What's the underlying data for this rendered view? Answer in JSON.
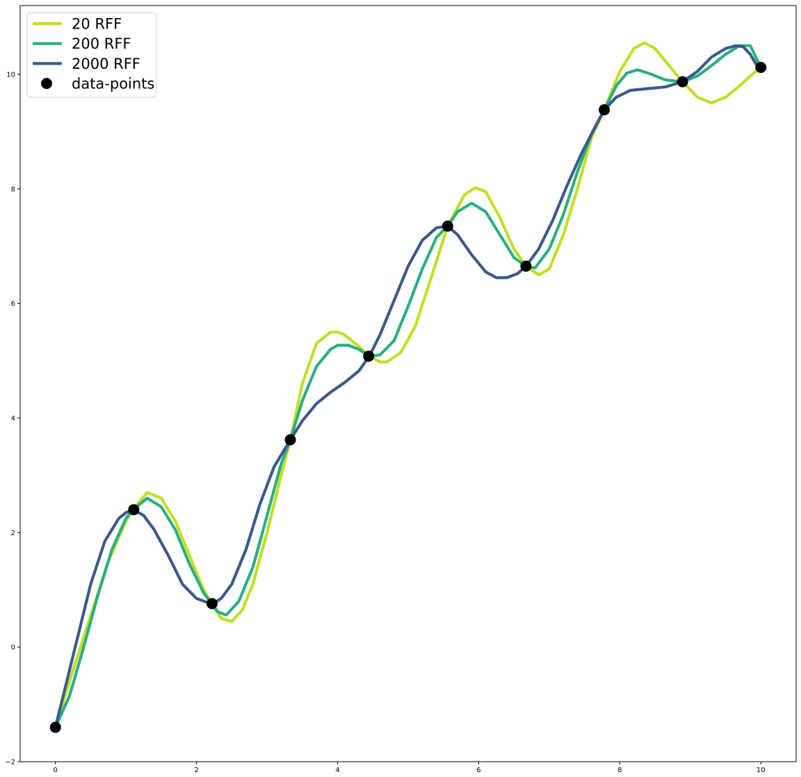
{
  "chart_data": {
    "type": "line",
    "title": "",
    "xlabel": "",
    "ylabel": "",
    "xlim": [
      -0.5,
      10.5
    ],
    "ylim": [
      -2.0,
      11.2
    ],
    "x_ticks": [
      0,
      2,
      4,
      6,
      8,
      10
    ],
    "y_ticks": [
      -2,
      0,
      2,
      4,
      6,
      8,
      10
    ],
    "x_tick_labels": [
      "0",
      "2",
      "4",
      "6",
      "8",
      "10"
    ],
    "y_tick_labels": [
      "−2",
      "0",
      "2",
      "4",
      "6",
      "8",
      "10"
    ],
    "grid": false,
    "legend_position": "top-left",
    "series": [
      {
        "name": "20 RFF",
        "kind": "line",
        "color": "#c2df23",
        "x": [
          0,
          0.25,
          0.5,
          0.75,
          1.0,
          1.1,
          1.3,
          1.5,
          1.7,
          1.9,
          2.1,
          2.22,
          2.35,
          2.5,
          2.65,
          2.8,
          3.0,
          3.2,
          3.33,
          3.5,
          3.7,
          3.9,
          4.0,
          4.1,
          4.3,
          4.45,
          4.6,
          4.7,
          4.9,
          5.1,
          5.3,
          5.56,
          5.8,
          5.95,
          6.1,
          6.3,
          6.5,
          6.67,
          6.85,
          7.0,
          7.2,
          7.4,
          7.6,
          7.78,
          8.0,
          8.2,
          8.35,
          8.5,
          8.7,
          8.89,
          9.1,
          9.3,
          9.5,
          9.7,
          9.85,
          10.0
        ],
        "y": [
          -1.4,
          -0.4,
          0.55,
          1.5,
          2.2,
          2.4,
          2.7,
          2.6,
          2.2,
          1.6,
          1.0,
          0.75,
          0.5,
          0.45,
          0.65,
          1.1,
          2.0,
          3.0,
          3.62,
          4.6,
          5.3,
          5.5,
          5.5,
          5.45,
          5.25,
          5.08,
          4.98,
          4.98,
          5.15,
          5.6,
          6.35,
          7.35,
          7.9,
          8.02,
          7.95,
          7.5,
          6.95,
          6.65,
          6.5,
          6.6,
          7.2,
          8.0,
          8.9,
          9.38,
          10.05,
          10.45,
          10.55,
          10.45,
          10.15,
          9.87,
          9.6,
          9.5,
          9.6,
          9.8,
          9.97,
          10.12
        ]
      },
      {
        "name": "200 RFF",
        "kind": "line",
        "color": "#2ab07f",
        "x": [
          0,
          0.2,
          0.4,
          0.6,
          0.8,
          1.0,
          1.1,
          1.3,
          1.5,
          1.7,
          1.9,
          2.1,
          2.22,
          2.3,
          2.42,
          2.6,
          2.8,
          3.0,
          3.2,
          3.33,
          3.5,
          3.7,
          3.9,
          4.0,
          4.15,
          4.3,
          4.45,
          4.6,
          4.8,
          5.0,
          5.2,
          5.4,
          5.56,
          5.7,
          5.9,
          6.1,
          6.3,
          6.5,
          6.67,
          6.8,
          7.0,
          7.2,
          7.4,
          7.6,
          7.78,
          7.95,
          8.1,
          8.25,
          8.45,
          8.65,
          8.89,
          9.1,
          9.3,
          9.5,
          9.7,
          9.85,
          10.0
        ],
        "y": [
          -1.4,
          -0.85,
          0.0,
          0.9,
          1.7,
          2.25,
          2.4,
          2.6,
          2.45,
          2.05,
          1.45,
          0.95,
          0.75,
          0.62,
          0.56,
          0.8,
          1.4,
          2.3,
          3.2,
          3.62,
          4.3,
          4.9,
          5.2,
          5.27,
          5.27,
          5.2,
          5.08,
          5.1,
          5.35,
          5.95,
          6.6,
          7.15,
          7.35,
          7.6,
          7.75,
          7.6,
          7.2,
          6.8,
          6.65,
          6.62,
          6.95,
          7.55,
          8.3,
          8.95,
          9.38,
          9.8,
          10.02,
          10.08,
          10.0,
          9.9,
          9.87,
          9.97,
          10.15,
          10.35,
          10.5,
          10.5,
          10.12
        ]
      },
      {
        "name": "2000 RFF",
        "kind": "line",
        "color": "#3b5a8a",
        "x": [
          0,
          0.1,
          0.3,
          0.5,
          0.7,
          0.9,
          1.0,
          1.1,
          1.25,
          1.4,
          1.6,
          1.8,
          2.0,
          2.22,
          2.35,
          2.5,
          2.7,
          2.9,
          3.1,
          3.33,
          3.5,
          3.7,
          3.9,
          4.1,
          4.3,
          4.45,
          4.6,
          4.8,
          5.0,
          5.2,
          5.4,
          5.56,
          5.7,
          5.9,
          6.1,
          6.25,
          6.4,
          6.55,
          6.67,
          6.85,
          7.05,
          7.25,
          7.45,
          7.65,
          7.78,
          7.95,
          8.15,
          8.4,
          8.65,
          8.89,
          9.1,
          9.3,
          9.5,
          9.65,
          9.75,
          9.85,
          9.93,
          10.0
        ],
        "y": [
          -1.4,
          -0.9,
          0.1,
          1.1,
          1.85,
          2.25,
          2.35,
          2.4,
          2.3,
          2.05,
          1.6,
          1.1,
          0.85,
          0.75,
          0.85,
          1.1,
          1.7,
          2.5,
          3.15,
          3.62,
          3.95,
          4.25,
          4.45,
          4.62,
          4.82,
          5.08,
          5.45,
          6.05,
          6.65,
          7.1,
          7.32,
          7.35,
          7.2,
          6.85,
          6.55,
          6.45,
          6.45,
          6.52,
          6.65,
          6.95,
          7.45,
          8.05,
          8.6,
          9.08,
          9.38,
          9.6,
          9.72,
          9.75,
          9.78,
          9.87,
          10.05,
          10.3,
          10.45,
          10.5,
          10.48,
          10.35,
          10.18,
          10.12
        ]
      },
      {
        "name": "data-points",
        "kind": "scatter",
        "color": "#000000",
        "x": [
          0.0,
          1.11,
          2.22,
          3.33,
          4.44,
          5.56,
          6.67,
          7.78,
          8.89,
          10.0
        ],
        "y": [
          -1.4,
          2.4,
          0.76,
          3.62,
          5.08,
          7.35,
          6.65,
          9.38,
          9.87,
          10.12
        ]
      }
    ]
  }
}
